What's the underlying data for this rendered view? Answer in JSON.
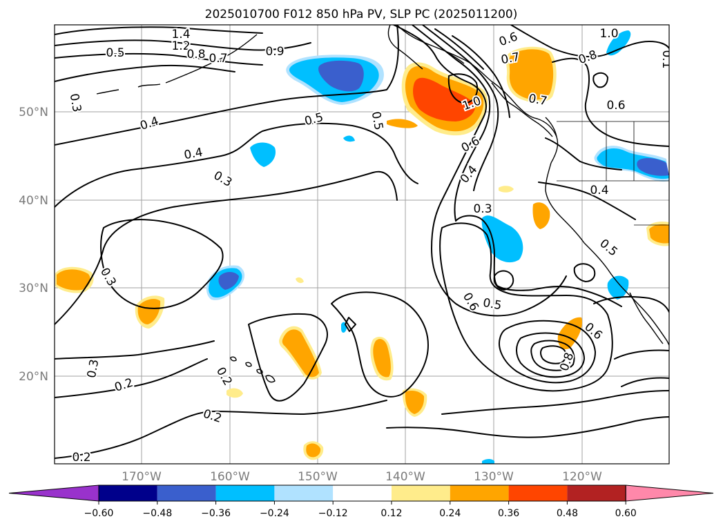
{
  "title": "2025010700 F012 850 hPa PV, SLP PC (2025011200)",
  "longitude_labels": [
    "170°W",
    "160°W",
    "150°W",
    "140°W",
    "130°W",
    "120°W"
  ],
  "latitude_labels": [
    "50°N",
    "40°N",
    "30°N",
    "20°N"
  ],
  "contour_labels": [
    "1.4",
    "1.2",
    "0.8",
    "0.7",
    "0.5",
    "0.9",
    "0.3",
    "0.4",
    "0.4",
    "0.3",
    "0.5",
    "0.5",
    "0.3",
    "0.3",
    "0.2",
    "0.2",
    "0.2",
    "0.2",
    "0.6",
    "0.7",
    "0.7",
    "1.0",
    "0.6",
    "0.4",
    "0.3",
    "1.0",
    "0.8",
    "0.6",
    "0.4",
    "0.5",
    "0.6",
    "0.5",
    "0.6",
    "0.8",
    "0.1"
  ],
  "colorbar": {
    "ticks": [
      "−0.60",
      "−0.48",
      "−0.36",
      "−0.24",
      "−0.12",
      "0.12",
      "0.24",
      "0.36",
      "0.48",
      "0.60"
    ],
    "colors": [
      "#9932cc",
      "#00008b",
      "#3a5fcd",
      "#00bfff",
      "#b0e2ff",
      "#ffffff",
      "#ffec8b",
      "#ffa500",
      "#ff4500",
      "#b22222",
      "#ff88aa"
    ]
  }
}
